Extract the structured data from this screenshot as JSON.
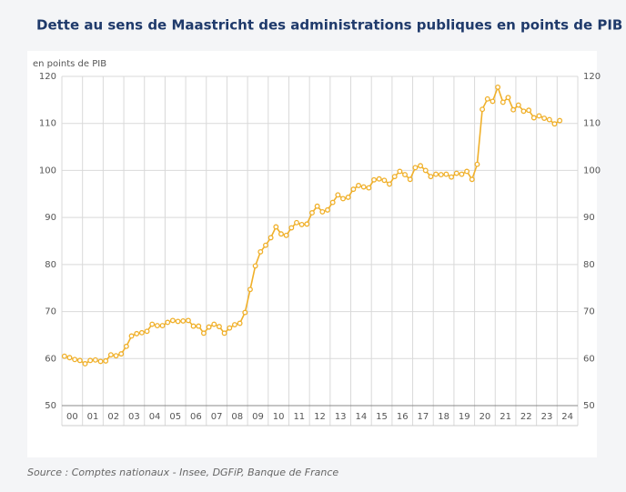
{
  "chart_data": {
    "type": "line",
    "title": "Dette au sens de Maastricht des administrations publiques en points de PIB (*)",
    "y_label": "en points de PIB",
    "source": "Source : Comptes nationaux - Insee, DGFiP, Banque de France",
    "categories": [
      "00",
      null,
      null,
      null,
      "01",
      null,
      null,
      null,
      "02",
      null,
      null,
      null,
      "03",
      null,
      null,
      null,
      "04",
      null,
      null,
      null,
      "05",
      null,
      null,
      null,
      "06",
      null,
      null,
      null,
      "07",
      null,
      null,
      null,
      "08",
      null,
      null,
      null,
      "09",
      null,
      null,
      null,
      "10",
      null,
      null,
      null,
      "11",
      null,
      null,
      null,
      "12",
      null,
      null,
      null,
      "13",
      null,
      null,
      null,
      "14",
      null,
      null,
      null,
      "15",
      null,
      null,
      null,
      "16",
      null,
      null,
      null,
      "17",
      null,
      null,
      null,
      "18",
      null,
      null,
      null,
      "19",
      null,
      null,
      null,
      "20",
      null,
      null,
      null,
      "21",
      null,
      null,
      null,
      "22",
      null,
      null,
      null,
      "23",
      null,
      null,
      null,
      "24"
    ],
    "values": [
      60.5,
      60.2,
      59.8,
      59.6,
      58.9,
      59.6,
      59.7,
      59.4,
      59.5,
      60.8,
      60.6,
      61.0,
      62.6,
      64.8,
      65.3,
      65.5,
      65.8,
      67.3,
      67.0,
      67.0,
      67.7,
      68.1,
      67.9,
      68.0,
      68.1,
      66.9,
      66.9,
      65.4,
      66.7,
      67.3,
      66.8,
      65.4,
      66.5,
      67.2,
      67.5,
      69.8,
      74.7,
      79.7,
      82.7,
      84.1,
      85.7,
      88.0,
      86.5,
      86.2,
      87.8,
      88.9,
      88.5,
      88.6,
      91.0,
      92.4,
      91.2,
      91.6,
      93.2,
      94.8,
      94.0,
      94.3,
      96.0,
      96.8,
      96.5,
      96.3,
      98.0,
      98.2,
      97.9,
      97.1,
      98.7,
      99.8,
      99.1,
      98.1,
      100.6,
      101.0,
      100.0,
      98.7,
      99.2,
      99.1,
      99.2,
      98.6,
      99.4,
      99.2,
      99.8,
      98.1,
      101.3,
      113.0,
      115.2,
      114.7,
      117.7,
      114.5,
      115.5,
      112.9,
      113.9,
      112.6,
      112.8,
      111.2,
      111.6,
      111.1,
      110.8,
      109.9,
      110.6
    ],
    "color": "#f0b02a",
    "ylim": [
      50,
      120
    ],
    "yticks": [
      50,
      60,
      70,
      80,
      90,
      100,
      110,
      120
    ],
    "grid": true
  }
}
